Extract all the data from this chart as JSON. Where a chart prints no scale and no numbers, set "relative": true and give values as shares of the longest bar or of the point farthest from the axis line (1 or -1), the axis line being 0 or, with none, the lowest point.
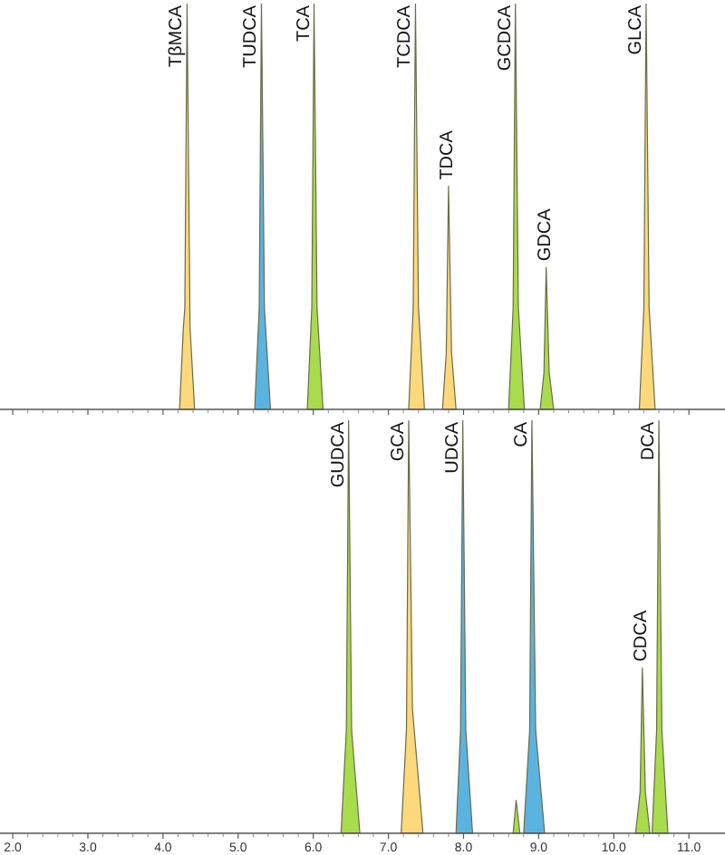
{
  "chart_data": [
    {
      "type": "area",
      "relative": true,
      "xlim": [
        1.83,
        11.48
      ],
      "tick_labels": false,
      "xticks": [
        {
          "value": 2,
          "label": null
        },
        {
          "value": 3,
          "label": null
        },
        {
          "value": 4,
          "label": null
        },
        {
          "value": 5,
          "label": null
        },
        {
          "value": 6,
          "label": null
        },
        {
          "value": 7,
          "label": null
        },
        {
          "value": 8,
          "label": null
        },
        {
          "value": 9,
          "label": null
        },
        {
          "value": 10,
          "label": null
        },
        {
          "value": 11,
          "label": null
        }
      ],
      "series": [
        {
          "name": "TβMCA",
          "color": "#fdd97c",
          "x": [
            4.22,
            4.27,
            4.29,
            4.32,
            4.36,
            4.42
          ],
          "values": [
            0,
            0.2,
            0.25,
            1,
            0.2,
            0
          ]
        },
        {
          "name": "TUDCA",
          "color": "#5bb3e0",
          "x": [
            5.22,
            5.28,
            5.31,
            5.35,
            5.43
          ],
          "values": [
            0,
            0.25,
            1,
            0.25,
            0
          ]
        },
        {
          "name": "TCA",
          "color": "#a8dc4c",
          "x": [
            5.92,
            5.98,
            6.01,
            6.05,
            6.13
          ],
          "values": [
            0,
            0.25,
            1,
            0.25,
            0
          ]
        },
        {
          "name": "TCDCA",
          "color": "#fdd97c",
          "x": [
            7.27,
            7.33,
            7.36,
            7.4,
            7.48
          ],
          "values": [
            0,
            0.25,
            1,
            0.25,
            0
          ]
        },
        {
          "name": "TDCA",
          "color": "#fdd97c",
          "x": [
            7.72,
            7.77,
            7.8,
            7.84,
            7.9
          ],
          "values": [
            0,
            0.14,
            0.55,
            0.14,
            0
          ]
        },
        {
          "name": "GCDCA",
          "color": "#a8dc4c",
          "x": [
            8.6,
            8.66,
            8.69,
            8.73,
            8.81
          ],
          "values": [
            0,
            0.25,
            1,
            0.25,
            0
          ]
        },
        {
          "name": "GDCA",
          "color": "#a8dc4c",
          "x": [
            9.02,
            9.07,
            9.1,
            9.14,
            9.2
          ],
          "values": [
            0,
            0.09,
            0.35,
            0.09,
            0
          ]
        },
        {
          "name": "GLCA",
          "color": "#fdd97c",
          "x": [
            10.34,
            10.4,
            10.43,
            10.47,
            10.55
          ],
          "values": [
            0,
            0.25,
            1,
            0.25,
            0
          ]
        }
      ]
    },
    {
      "type": "area",
      "relative": true,
      "xlim": [
        1.83,
        11.48
      ],
      "tick_labels": "x",
      "xticks": [
        {
          "value": 2,
          "label": "2.0"
        },
        {
          "value": 3,
          "label": "3.0"
        },
        {
          "value": 4,
          "label": "4.0"
        },
        {
          "value": 5,
          "label": "5.0"
        },
        {
          "value": 6,
          "label": "6.0"
        },
        {
          "value": 7,
          "label": "7.0"
        },
        {
          "value": 8,
          "label": "8.0"
        },
        {
          "value": 9,
          "label": "9.0"
        },
        {
          "value": 10,
          "label": "10.0"
        },
        {
          "value": 11,
          "label": "11.0"
        }
      ],
      "series": [
        {
          "name": "GUDCA",
          "color": "#a8dc4c",
          "x": [
            6.37,
            6.44,
            6.47,
            6.51,
            6.62
          ],
          "values": [
            0,
            0.25,
            1,
            0.25,
            0
          ]
        },
        {
          "name": "GCA",
          "color": "#fdd97c",
          "x": [
            7.17,
            7.24,
            7.27,
            7.32,
            7.46
          ],
          "values": [
            0,
            0.25,
            1,
            0.3,
            0
          ]
        },
        {
          "name": "UDCA",
          "color": "#5bb3e0",
          "x": [
            7.9,
            7.96,
            7.99,
            8.03,
            8.12
          ],
          "values": [
            0,
            0.25,
            1,
            0.25,
            0
          ]
        },
        {
          "name": "CA",
          "color": "#5bb3e0",
          "x": [
            8.8,
            8.88,
            8.91,
            8.96,
            9.08
          ],
          "values": [
            0,
            0.25,
            1,
            0.25,
            0
          ]
        },
        {
          "color": "#a8dc4c",
          "x": [
            8.66,
            8.7,
            8.75
          ],
          "values": [
            0,
            0.08,
            0
          ]
        },
        {
          "name": "CDCA",
          "color": "#a8dc4c",
          "x": [
            10.29,
            10.35,
            10.38,
            10.42,
            10.48
          ],
          "values": [
            0,
            0.1,
            0.4,
            0.1,
            0
          ]
        },
        {
          "name": "DCA",
          "color": "#a8dc4c",
          "x": [
            10.51,
            10.57,
            10.6,
            10.64,
            10.72
          ],
          "values": [
            0,
            0.25,
            1,
            0.25,
            0
          ]
        }
      ]
    }
  ]
}
